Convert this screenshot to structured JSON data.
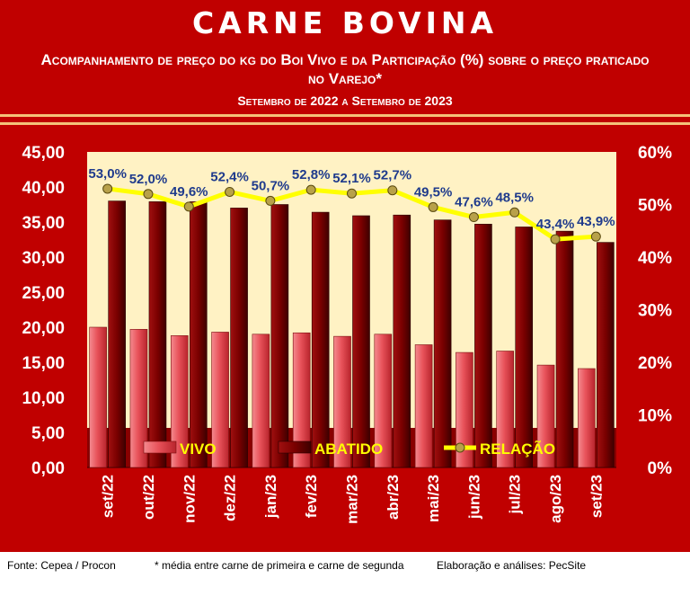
{
  "header": {
    "title": "CARNE BOVINA",
    "subtitle": "Acompanhamento de preço do kg do Boi Vivo e da Participação (%) sobre o preço praticado no Varejo*",
    "period": "Setembro de 2022 a Setembro de 2023"
  },
  "footer": {
    "source": "Fonte: Cepea / Procon",
    "note": "* média entre carne de primeira e carne de segunda",
    "credit": "Elaboração e análises: PecSite"
  },
  "colors": {
    "background": "#c00000",
    "plot_area": "#fff2c4",
    "vivo_bar": "#e8525a",
    "abatido_bar": "#7a0000",
    "relacao_line": "#ffff00",
    "relacao_marker": "#b8a14a",
    "relacao_label": "#1f3b8c",
    "legend_text": "#ffff00"
  },
  "chart_data": {
    "type": "bar",
    "categories": [
      "set/22",
      "out/22",
      "nov/22",
      "dez/22",
      "jan/23",
      "fev/23",
      "mar/23",
      "abr/23",
      "mai/23",
      "jun/23",
      "jul/23",
      "ago/23",
      "set/23"
    ],
    "series": [
      {
        "name": "VIVO",
        "type": "bar",
        "axis": "left",
        "values": [
          20.0,
          19.7,
          18.8,
          19.3,
          19.0,
          19.2,
          18.7,
          19.0,
          17.5,
          16.4,
          16.6,
          14.6,
          14.1
        ]
      },
      {
        "name": "ABATIDO",
        "type": "bar",
        "axis": "left",
        "values": [
          38.0,
          37.9,
          37.9,
          37.0,
          37.5,
          36.4,
          35.9,
          36.0,
          35.3,
          34.7,
          34.3,
          33.7,
          32.1
        ]
      },
      {
        "name": "RELAÇÃO",
        "type": "line",
        "axis": "right",
        "values": [
          53.0,
          52.0,
          49.6,
          52.4,
          50.7,
          52.8,
          52.1,
          52.7,
          49.5,
          47.6,
          48.5,
          43.4,
          43.9
        ],
        "labels": [
          "53,0%",
          "52,0%",
          "49,6%",
          "52,4%",
          "50,7%",
          "52,8%",
          "52,1%",
          "52,7%",
          "49,5%",
          "47,6%",
          "48,5%",
          "43,4%",
          "43,9%"
        ]
      }
    ],
    "y_left": {
      "min": 0,
      "max": 45,
      "ticks": [
        "0,00",
        "5,00",
        "10,00",
        "15,00",
        "20,00",
        "25,00",
        "30,00",
        "35,00",
        "40,00",
        "45,00"
      ]
    },
    "y_right": {
      "min": 0,
      "max": 60,
      "ticks": [
        "0%",
        "10%",
        "20%",
        "30%",
        "40%",
        "50%",
        "60%"
      ]
    },
    "grid": false,
    "legend": "bottom"
  }
}
